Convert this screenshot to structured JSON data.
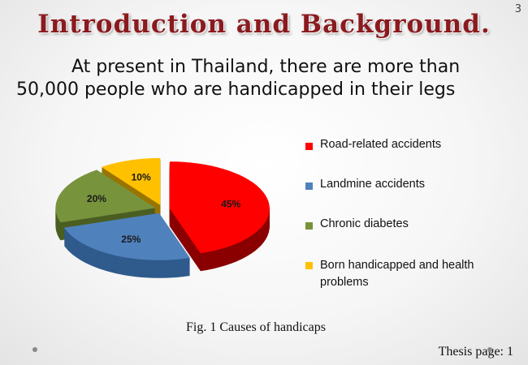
{
  "slide": {
    "title": "Introduction and Background.",
    "page_number": "3",
    "subtitle_line1": "At present in Thailand, there are more than",
    "subtitle_line2": "50,000 people who are handicapped in their legs",
    "caption": "Fig. 1 Causes of handicaps",
    "footer": "Thesis page: 1"
  },
  "chart_data": {
    "type": "pie",
    "style": "3d-exploded",
    "legend_placement": "right",
    "categories": [
      "Road-related accidents",
      "Landmine accidents",
      "Chronic diabetes",
      "Born handicapped and health problems"
    ],
    "values": [
      45,
      25,
      20,
      10
    ],
    "data_labels": [
      "45%",
      "25%",
      "20%",
      "10%"
    ],
    "colors": [
      "#ff0000",
      "#4f81bd",
      "#77933c",
      "#ffc000"
    ],
    "side_colors": [
      "#8a0000",
      "#2f5a8c",
      "#4a5e22",
      "#9a7400"
    ]
  }
}
